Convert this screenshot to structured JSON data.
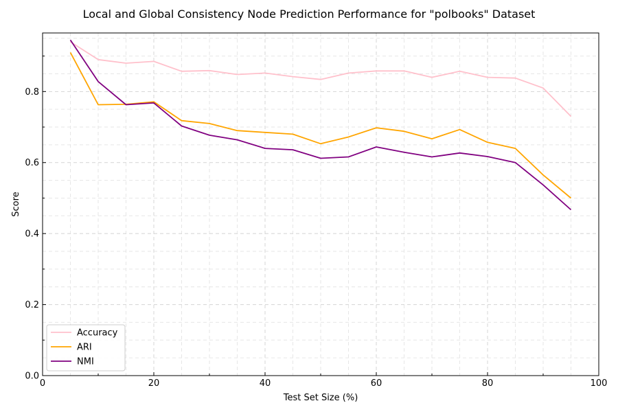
{
  "chart_data": {
    "type": "line",
    "title": "Local and Global Consistency Node Prediction Performance for \"polbooks\" Dataset",
    "xlabel": "Test Set Size (%)",
    "ylabel": "Score",
    "xlim": [
      0,
      100
    ],
    "ylim": [
      0,
      0.965
    ],
    "xticks": [
      0,
      20,
      40,
      60,
      80,
      100
    ],
    "yticks": [
      0.0,
      0.2,
      0.4,
      0.6,
      0.8
    ],
    "xtick_labels": [
      "0",
      "20",
      "40",
      "60",
      "80",
      "100"
    ],
    "ytick_labels": [
      "0.0",
      "0.2",
      "0.4",
      "0.6",
      "0.8"
    ],
    "grid": true,
    "legend_position": "lower-left",
    "x": [
      5,
      10,
      15,
      20,
      25,
      30,
      35,
      40,
      45,
      50,
      55,
      60,
      65,
      70,
      75,
      80,
      85,
      90,
      95
    ],
    "series": [
      {
        "name": "Accuracy",
        "color": "#ffc0cb",
        "values": [
          0.94,
          0.89,
          0.88,
          0.885,
          0.857,
          0.859,
          0.848,
          0.852,
          0.842,
          0.834,
          0.852,
          0.858,
          0.858,
          0.84,
          0.857,
          0.84,
          0.838,
          0.81,
          0.73
        ]
      },
      {
        "name": "ARI",
        "color": "#ffa500",
        "values": [
          0.91,
          0.763,
          0.764,
          0.771,
          0.718,
          0.71,
          0.69,
          0.685,
          0.68,
          0.653,
          0.672,
          0.698,
          0.688,
          0.667,
          0.693,
          0.657,
          0.64,
          0.565,
          0.5
        ]
      },
      {
        "name": "NMI",
        "color": "#800080",
        "values": [
          0.945,
          0.828,
          0.763,
          0.768,
          0.703,
          0.677,
          0.664,
          0.64,
          0.636,
          0.612,
          0.616,
          0.644,
          0.629,
          0.616,
          0.627,
          0.617,
          0.6,
          0.537,
          0.467
        ]
      }
    ]
  }
}
